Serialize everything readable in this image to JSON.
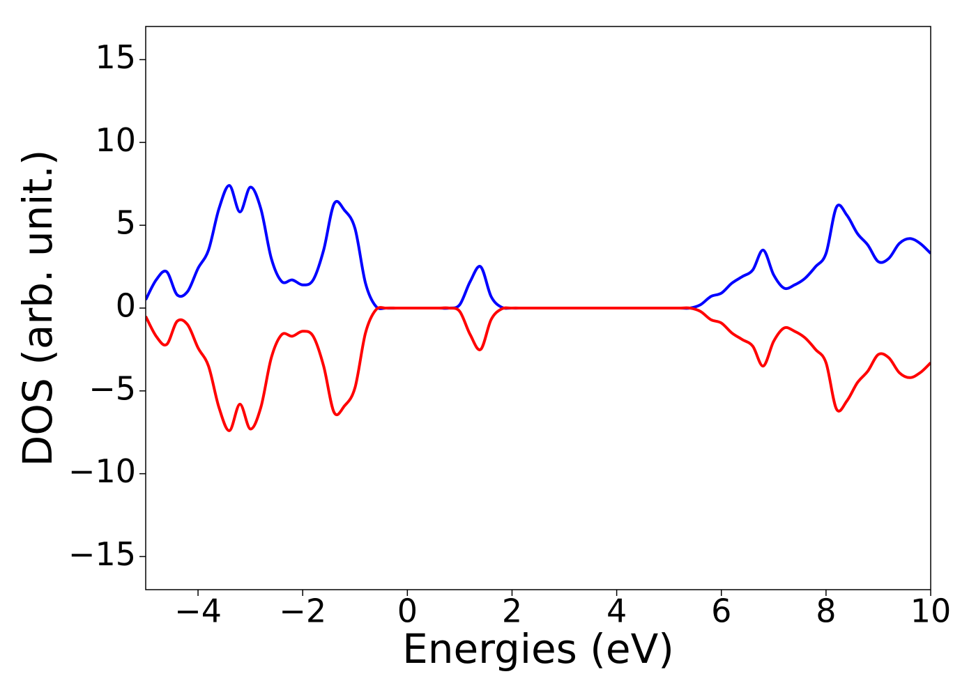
{
  "chart_data": {
    "type": "line",
    "x_label": "Energies (eV)",
    "y_label": "DOS (arb. unit.)",
    "x": [
      -5,
      -4.8,
      -4.6,
      -4.4,
      -4.2,
      -4,
      -3.8,
      -3.6,
      -3.4,
      -3.2,
      -3,
      -2.8,
      -2.6,
      -2.4,
      -2.2,
      -2,
      -1.8,
      -1.6,
      -1.4,
      -1.2,
      -1,
      -0.8,
      -0.6,
      -0.4,
      -0.2,
      0,
      0.2,
      0.4,
      0.6,
      0.8,
      1,
      1.2,
      1.4,
      1.6,
      1.8,
      2,
      2.2,
      2.4,
      2.6,
      2.8,
      3,
      3.2,
      3.4,
      3.6,
      3.8,
      4,
      4.2,
      4.4,
      4.6,
      4.8,
      5,
      5.2,
      5.4,
      5.6,
      5.8,
      6,
      6.2,
      6.4,
      6.6,
      6.8,
      7,
      7.2,
      7.4,
      7.6,
      7.8,
      8,
      8.2,
      8.4,
      8.6,
      8.8,
      9,
      9.2,
      9.4,
      9.6,
      9.8,
      10
    ],
    "series": [
      {
        "color": "#0000ff",
        "values": [
          0.5,
          1.7,
          2.2,
          0.8,
          1.0,
          2.4,
          3.5,
          6.0,
          7.4,
          5.8,
          7.3,
          6.0,
          3.0,
          1.6,
          1.7,
          1.4,
          1.7,
          3.5,
          6.3,
          5.9,
          4.8,
          1.5,
          0.1,
          0,
          0,
          0,
          0,
          0,
          0,
          0,
          0.2,
          1.6,
          2.5,
          0.7,
          0.05,
          0,
          0,
          0,
          0,
          0,
          0,
          0,
          0,
          0,
          0,
          0,
          0,
          0,
          0,
          0,
          0,
          0,
          0,
          0.2,
          0.7,
          0.9,
          1.5,
          1.9,
          2.3,
          3.5,
          2.0,
          1.2,
          1.4,
          1.8,
          2.5,
          3.3,
          6.1,
          5.6,
          4.5,
          3.8,
          2.8,
          3.0,
          3.9,
          4.2,
          3.9,
          3.3
        ]
      },
      {
        "color": "#ff0000",
        "values": [
          -0.5,
          -1.7,
          -2.2,
          -0.8,
          -1.0,
          -2.4,
          -3.5,
          -6.0,
          -7.4,
          -5.8,
          -7.3,
          -6.0,
          -3.0,
          -1.6,
          -1.7,
          -1.4,
          -1.7,
          -3.5,
          -6.3,
          -5.9,
          -4.8,
          -1.5,
          -0.1,
          0,
          0,
          0,
          0,
          0,
          0,
          0,
          -0.2,
          -1.6,
          -2.5,
          -0.7,
          -0.05,
          0,
          0,
          0,
          0,
          0,
          0,
          0,
          0,
          0,
          0,
          0,
          0,
          0,
          0,
          0,
          0,
          0,
          0,
          -0.2,
          -0.7,
          -0.9,
          -1.5,
          -1.9,
          -2.3,
          -3.5,
          -2.0,
          -1.2,
          -1.4,
          -1.8,
          -2.5,
          -3.3,
          -6.1,
          -5.6,
          -4.5,
          -3.8,
          -2.8,
          -3.0,
          -3.9,
          -4.2,
          -3.9,
          -3.3
        ]
      }
    ],
    "xlim": [
      -5,
      10
    ],
    "xticks": [
      {
        "value": -4,
        "label": "−4"
      },
      {
        "value": -2,
        "label": "−2"
      },
      0,
      2,
      4,
      6,
      8,
      10
    ],
    "ylim": [
      -17,
      17
    ],
    "yticks": [
      {
        "value": -15,
        "label": "−15"
      },
      {
        "value": -10,
        "label": "−10"
      },
      {
        "value": -5,
        "label": "−5"
      },
      0,
      5,
      10,
      15
    ],
    "grid": false
  }
}
